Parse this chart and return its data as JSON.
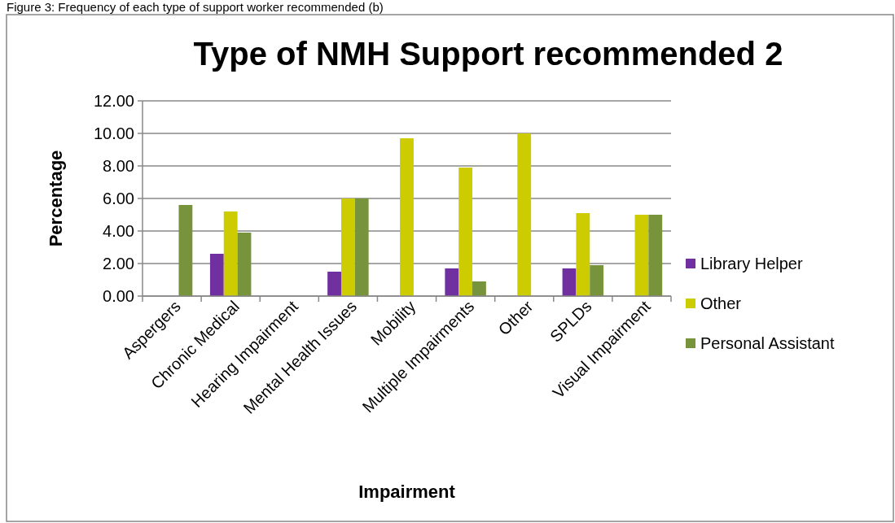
{
  "chart_data": {
    "type": "bar",
    "title": "Type of NMH Support recommended 2",
    "xlabel": "Impairment",
    "ylabel": "Percentage",
    "annotations": [
      "Figure 3: Frequency of each type of support worker recommended (b)"
    ],
    "categories": [
      "Aspergers",
      "Chronic Medical",
      "Hearing Impairment",
      "Mental Health Issues",
      "Mobility",
      "Multiple Impairments",
      "Other",
      "SPLDs",
      "Visual Impairment"
    ],
    "series": [
      {
        "name": "Library Helper",
        "color": "#7030a0",
        "values": [
          0,
          2.6,
          0,
          1.5,
          0,
          1.7,
          0,
          1.7,
          0
        ]
      },
      {
        "name": "Other",
        "color": "#cccc00",
        "values": [
          0,
          5.2,
          0,
          6.0,
          9.7,
          7.9,
          10.0,
          5.1,
          5.0
        ]
      },
      {
        "name": "Personal Assistant",
        "color": "#77933c",
        "values": [
          5.6,
          3.9,
          0,
          6.0,
          0,
          0.9,
          0,
          1.9,
          5.0
        ]
      }
    ],
    "ylim": [
      0,
      12
    ],
    "yticks": [
      {
        "value": 0,
        "label": "0.00"
      },
      {
        "value": 2,
        "label": "2.00"
      },
      {
        "value": 4,
        "label": "4.00"
      },
      {
        "value": 6,
        "label": "6.00"
      },
      {
        "value": 8,
        "label": "8.00"
      },
      {
        "value": 10,
        "label": "10.00"
      },
      {
        "value": 12,
        "label": "12.00"
      }
    ],
    "grid": "y",
    "legend": "right"
  }
}
